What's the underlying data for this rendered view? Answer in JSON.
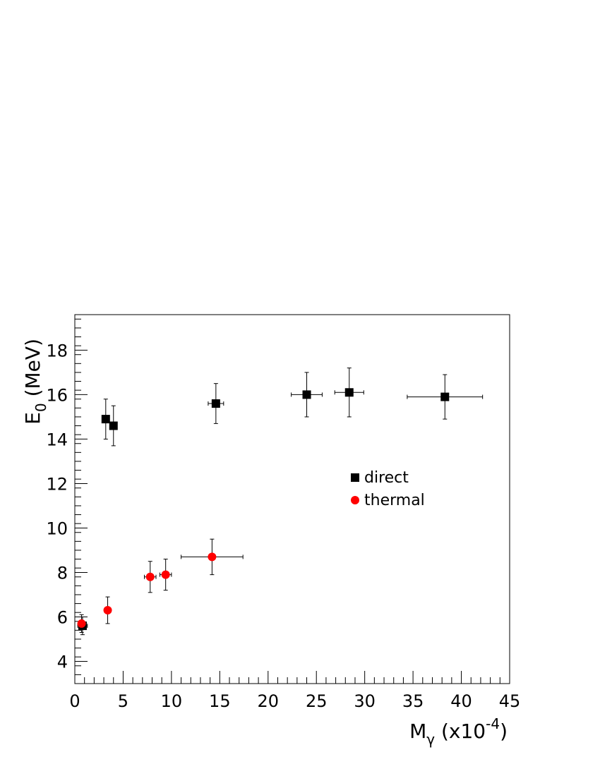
{
  "chart_data": {
    "type": "scatter",
    "xlabel": "M",
    "xlabel_sub": "γ",
    "xlabel_suffix": " (x10",
    "xlabel_exp": "-4",
    "xlabel_close": ")",
    "ylabel": "E",
    "ylabel_sub": "0",
    "ylabel_suffix": " (MeV)",
    "xlim": [
      0,
      45
    ],
    "ylim": [
      3,
      19.6
    ],
    "x_ticks": [
      0,
      5,
      10,
      15,
      20,
      25,
      30,
      35,
      40,
      45
    ],
    "y_ticks": [
      4,
      6,
      8,
      10,
      12,
      14,
      16,
      18
    ],
    "grid": false,
    "legend_position": "right-middle",
    "series": [
      {
        "name": "direct",
        "marker": "square",
        "color": "#000000",
        "points": [
          {
            "x": 0.8,
            "y": 5.6,
            "xerr": 0.5,
            "yerr": 0.4
          },
          {
            "x": 3.2,
            "y": 14.9,
            "xerr": 0.2,
            "yerr": 0.9
          },
          {
            "x": 4.0,
            "y": 14.6,
            "xerr": 0.2,
            "yerr": 0.9
          },
          {
            "x": 14.6,
            "y": 15.6,
            "xerr": 0.8,
            "yerr": 0.9
          },
          {
            "x": 24.0,
            "y": 16.0,
            "xerr": 1.6,
            "yerr": 1.0
          },
          {
            "x": 28.4,
            "y": 16.1,
            "xerr": 1.5,
            "yerr": 1.1
          },
          {
            "x": 38.3,
            "y": 15.9,
            "xerr": 3.9,
            "yerr": 1.0
          }
        ]
      },
      {
        "name": "thermal",
        "marker": "circle",
        "color": "#ff0000",
        "points": [
          {
            "x": 0.7,
            "y": 5.7,
            "xerr": 0.3,
            "yerr": 0.4
          },
          {
            "x": 3.4,
            "y": 6.3,
            "xerr": 0.3,
            "yerr": 0.6
          },
          {
            "x": 7.8,
            "y": 7.8,
            "xerr": 0.6,
            "yerr": 0.7
          },
          {
            "x": 9.4,
            "y": 7.9,
            "xerr": 0.6,
            "yerr": 0.7
          },
          {
            "x": 14.2,
            "y": 8.7,
            "xerr": 3.2,
            "yerr": 0.8
          }
        ]
      }
    ]
  }
}
